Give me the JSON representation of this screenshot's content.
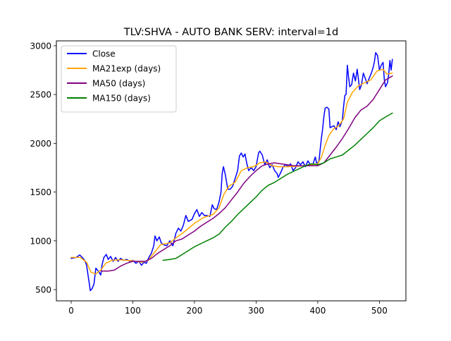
{
  "chart_data": {
    "type": "line",
    "title": "TLV:SHVA - AUTO BANK SERV: interval=1d",
    "xlabel": "",
    "ylabel": "",
    "xlim": [
      -24,
      543
    ],
    "ylim": [
      385,
      3050
    ],
    "x_ticks": [
      0,
      100,
      200,
      300,
      400,
      500
    ],
    "y_ticks": [
      500,
      1000,
      1500,
      2000,
      2500,
      3000
    ],
    "grid": false,
    "legend_position": "top-left",
    "series": [
      {
        "name": "Close",
        "color": "#0000ff",
        "points": [
          [
            0,
            820
          ],
          [
            8,
            830
          ],
          [
            14,
            855
          ],
          [
            18,
            830
          ],
          [
            22,
            800
          ],
          [
            25,
            750
          ],
          [
            28,
            620
          ],
          [
            30,
            540
          ],
          [
            31,
            490
          ],
          [
            34,
            510
          ],
          [
            37,
            560
          ],
          [
            40,
            720
          ],
          [
            44,
            690
          ],
          [
            48,
            650
          ],
          [
            50,
            750
          ],
          [
            53,
            830
          ],
          [
            57,
            860
          ],
          [
            60,
            810
          ],
          [
            64,
            840
          ],
          [
            68,
            790
          ],
          [
            72,
            830
          ],
          [
            76,
            790
          ],
          [
            80,
            820
          ],
          [
            85,
            800
          ],
          [
            90,
            810
          ],
          [
            95,
            790
          ],
          [
            100,
            800
          ],
          [
            105,
            770
          ],
          [
            110,
            790
          ],
          [
            114,
            750
          ],
          [
            118,
            780
          ],
          [
            122,
            770
          ],
          [
            126,
            830
          ],
          [
            130,
            870
          ],
          [
            134,
            950
          ],
          [
            136,
            1050
          ],
          [
            139,
            1000
          ],
          [
            143,
            1040
          ],
          [
            146,
            980
          ],
          [
            150,
            960
          ],
          [
            155,
            950
          ],
          [
            160,
            1000
          ],
          [
            165,
            950
          ],
          [
            170,
            1080
          ],
          [
            174,
            1130
          ],
          [
            178,
            1100
          ],
          [
            182,
            1160
          ],
          [
            186,
            1260
          ],
          [
            190,
            1200
          ],
          [
            196,
            1220
          ],
          [
            200,
            1280
          ],
          [
            204,
            1320
          ],
          [
            208,
            1250
          ],
          [
            212,
            1290
          ],
          [
            216,
            1260
          ],
          [
            220,
            1260
          ],
          [
            225,
            1250
          ],
          [
            229,
            1370
          ],
          [
            232,
            1330
          ],
          [
            236,
            1320
          ],
          [
            240,
            1400
          ],
          [
            243,
            1500
          ],
          [
            245,
            1690
          ],
          [
            247,
            1760
          ],
          [
            250,
            1680
          ],
          [
            254,
            1530
          ],
          [
            258,
            1530
          ],
          [
            262,
            1560
          ],
          [
            266,
            1640
          ],
          [
            270,
            1720
          ],
          [
            273,
            1870
          ],
          [
            276,
            1900
          ],
          [
            279,
            1860
          ],
          [
            282,
            1890
          ],
          [
            285,
            1790
          ],
          [
            288,
            1720
          ],
          [
            292,
            1750
          ],
          [
            296,
            1720
          ],
          [
            300,
            1760
          ],
          [
            304,
            1900
          ],
          [
            306,
            1920
          ],
          [
            310,
            1880
          ],
          [
            314,
            1780
          ],
          [
            318,
            1830
          ],
          [
            322,
            1750
          ],
          [
            326,
            1780
          ],
          [
            330,
            1720
          ],
          [
            334,
            1690
          ],
          [
            336,
            1650
          ],
          [
            340,
            1700
          ],
          [
            344,
            1760
          ],
          [
            348,
            1780
          ],
          [
            352,
            1760
          ],
          [
            356,
            1790
          ],
          [
            360,
            1720
          ],
          [
            364,
            1750
          ],
          [
            368,
            1810
          ],
          [
            372,
            1780
          ],
          [
            376,
            1810
          ],
          [
            380,
            1760
          ],
          [
            384,
            1820
          ],
          [
            388,
            1780
          ],
          [
            392,
            1780
          ],
          [
            396,
            1860
          ],
          [
            398,
            1800
          ],
          [
            400,
            1800
          ],
          [
            402,
            1820
          ],
          [
            404,
            1940
          ],
          [
            406,
            2060
          ],
          [
            408,
            2150
          ],
          [
            410,
            2280
          ],
          [
            412,
            2360
          ],
          [
            415,
            2370
          ],
          [
            418,
            2350
          ],
          [
            420,
            2160
          ],
          [
            423,
            2170
          ],
          [
            426,
            2180
          ],
          [
            430,
            2140
          ],
          [
            433,
            2220
          ],
          [
            436,
            2170
          ],
          [
            440,
            2240
          ],
          [
            442,
            2380
          ],
          [
            444,
            2490
          ],
          [
            446,
            2500
          ],
          [
            448,
            2800
          ],
          [
            450,
            2680
          ],
          [
            452,
            2580
          ],
          [
            455,
            2600
          ],
          [
            458,
            2720
          ],
          [
            461,
            2640
          ],
          [
            464,
            2760
          ],
          [
            468,
            2550
          ],
          [
            471,
            2600
          ],
          [
            474,
            2720
          ],
          [
            478,
            2650
          ],
          [
            480,
            2610
          ],
          [
            483,
            2660
          ],
          [
            487,
            2720
          ],
          [
            490,
            2780
          ],
          [
            492,
            2840
          ],
          [
            494,
            2930
          ],
          [
            497,
            2900
          ],
          [
            500,
            2750
          ],
          [
            503,
            2800
          ],
          [
            506,
            2830
          ],
          [
            508,
            2650
          ],
          [
            510,
            2580
          ],
          [
            513,
            2620
          ],
          [
            515,
            2700
          ],
          [
            517,
            2850
          ],
          [
            519,
            2750
          ],
          [
            521,
            2860
          ]
        ]
      },
      {
        "name": "MA21exp (days)",
        "color": "#ffa500",
        "points": [
          [
            0,
            830
          ],
          [
            15,
            830
          ],
          [
            25,
            780
          ],
          [
            32,
            680
          ],
          [
            40,
            660
          ],
          [
            48,
            700
          ],
          [
            56,
            770
          ],
          [
            66,
            800
          ],
          [
            80,
            805
          ],
          [
            100,
            795
          ],
          [
            115,
            780
          ],
          [
            125,
            800
          ],
          [
            135,
            880
          ],
          [
            145,
            960
          ],
          [
            160,
            980
          ],
          [
            170,
            1030
          ],
          [
            185,
            1100
          ],
          [
            200,
            1180
          ],
          [
            215,
            1240
          ],
          [
            230,
            1270
          ],
          [
            240,
            1340
          ],
          [
            248,
            1480
          ],
          [
            256,
            1560
          ],
          [
            266,
            1600
          ],
          [
            276,
            1720
          ],
          [
            286,
            1750
          ],
          [
            296,
            1760
          ],
          [
            306,
            1800
          ],
          [
            316,
            1810
          ],
          [
            326,
            1770
          ],
          [
            336,
            1760
          ],
          [
            350,
            1760
          ],
          [
            370,
            1765
          ],
          [
            390,
            1780
          ],
          [
            400,
            1790
          ],
          [
            406,
            1860
          ],
          [
            412,
            1980
          ],
          [
            418,
            2080
          ],
          [
            426,
            2150
          ],
          [
            434,
            2180
          ],
          [
            442,
            2250
          ],
          [
            448,
            2420
          ],
          [
            456,
            2520
          ],
          [
            466,
            2590
          ],
          [
            476,
            2620
          ],
          [
            486,
            2650
          ],
          [
            496,
            2740
          ],
          [
            506,
            2760
          ],
          [
            512,
            2710
          ],
          [
            521,
            2720
          ]
        ]
      },
      {
        "name": "MA50 (days)",
        "color": "#800080",
        "points": [
          [
            49,
            690
          ],
          [
            60,
            690
          ],
          [
            70,
            700
          ],
          [
            80,
            740
          ],
          [
            90,
            770
          ],
          [
            100,
            790
          ],
          [
            110,
            790
          ],
          [
            120,
            790
          ],
          [
            130,
            820
          ],
          [
            140,
            870
          ],
          [
            150,
            910
          ],
          [
            160,
            950
          ],
          [
            170,
            1000
          ],
          [
            180,
            1020
          ],
          [
            190,
            1060
          ],
          [
            200,
            1100
          ],
          [
            210,
            1150
          ],
          [
            220,
            1190
          ],
          [
            230,
            1230
          ],
          [
            240,
            1280
          ],
          [
            250,
            1340
          ],
          [
            260,
            1420
          ],
          [
            270,
            1500
          ],
          [
            280,
            1590
          ],
          [
            290,
            1660
          ],
          [
            300,
            1720
          ],
          [
            310,
            1770
          ],
          [
            320,
            1790
          ],
          [
            330,
            1800
          ],
          [
            340,
            1790
          ],
          [
            350,
            1780
          ],
          [
            360,
            1770
          ],
          [
            370,
            1770
          ],
          [
            380,
            1770
          ],
          [
            390,
            1770
          ],
          [
            400,
            1770
          ],
          [
            410,
            1800
          ],
          [
            420,
            1880
          ],
          [
            430,
            1960
          ],
          [
            440,
            2050
          ],
          [
            450,
            2150
          ],
          [
            460,
            2260
          ],
          [
            470,
            2340
          ],
          [
            480,
            2380
          ],
          [
            490,
            2450
          ],
          [
            500,
            2550
          ],
          [
            510,
            2650
          ],
          [
            521,
            2690
          ]
        ]
      },
      {
        "name": "MA150 (days)",
        "color": "#008000",
        "points": [
          [
            149,
            800
          ],
          [
            160,
            810
          ],
          [
            170,
            820
          ],
          [
            180,
            860
          ],
          [
            190,
            900
          ],
          [
            200,
            940
          ],
          [
            210,
            970
          ],
          [
            220,
            1000
          ],
          [
            230,
            1030
          ],
          [
            240,
            1070
          ],
          [
            250,
            1140
          ],
          [
            260,
            1200
          ],
          [
            270,
            1270
          ],
          [
            280,
            1330
          ],
          [
            290,
            1390
          ],
          [
            300,
            1450
          ],
          [
            310,
            1520
          ],
          [
            320,
            1570
          ],
          [
            330,
            1600
          ],
          [
            340,
            1640
          ],
          [
            350,
            1680
          ],
          [
            360,
            1710
          ],
          [
            370,
            1740
          ],
          [
            380,
            1770
          ],
          [
            390,
            1790
          ],
          [
            400,
            1780
          ],
          [
            410,
            1800
          ],
          [
            420,
            1840
          ],
          [
            430,
            1860
          ],
          [
            440,
            1880
          ],
          [
            450,
            1930
          ],
          [
            460,
            1980
          ],
          [
            470,
            2040
          ],
          [
            480,
            2100
          ],
          [
            490,
            2160
          ],
          [
            500,
            2230
          ],
          [
            510,
            2270
          ],
          [
            521,
            2310
          ]
        ]
      }
    ]
  }
}
